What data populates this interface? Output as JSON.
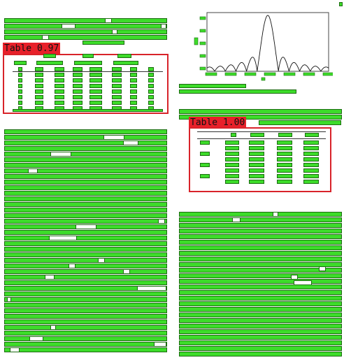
{
  "detections": [
    {
      "label": "Table 0.97"
    },
    {
      "label": "Table 1.00"
    }
  ],
  "colors": {
    "text_block": "#3ddc2a",
    "text_block_border": "#1d6b12",
    "table_box": "#d8232a",
    "table_label_bg": "#e8202a"
  },
  "figure": {
    "plot_type": "line",
    "shape": "sinc-squared pattern, central peak with symmetric decaying side lobes"
  }
}
